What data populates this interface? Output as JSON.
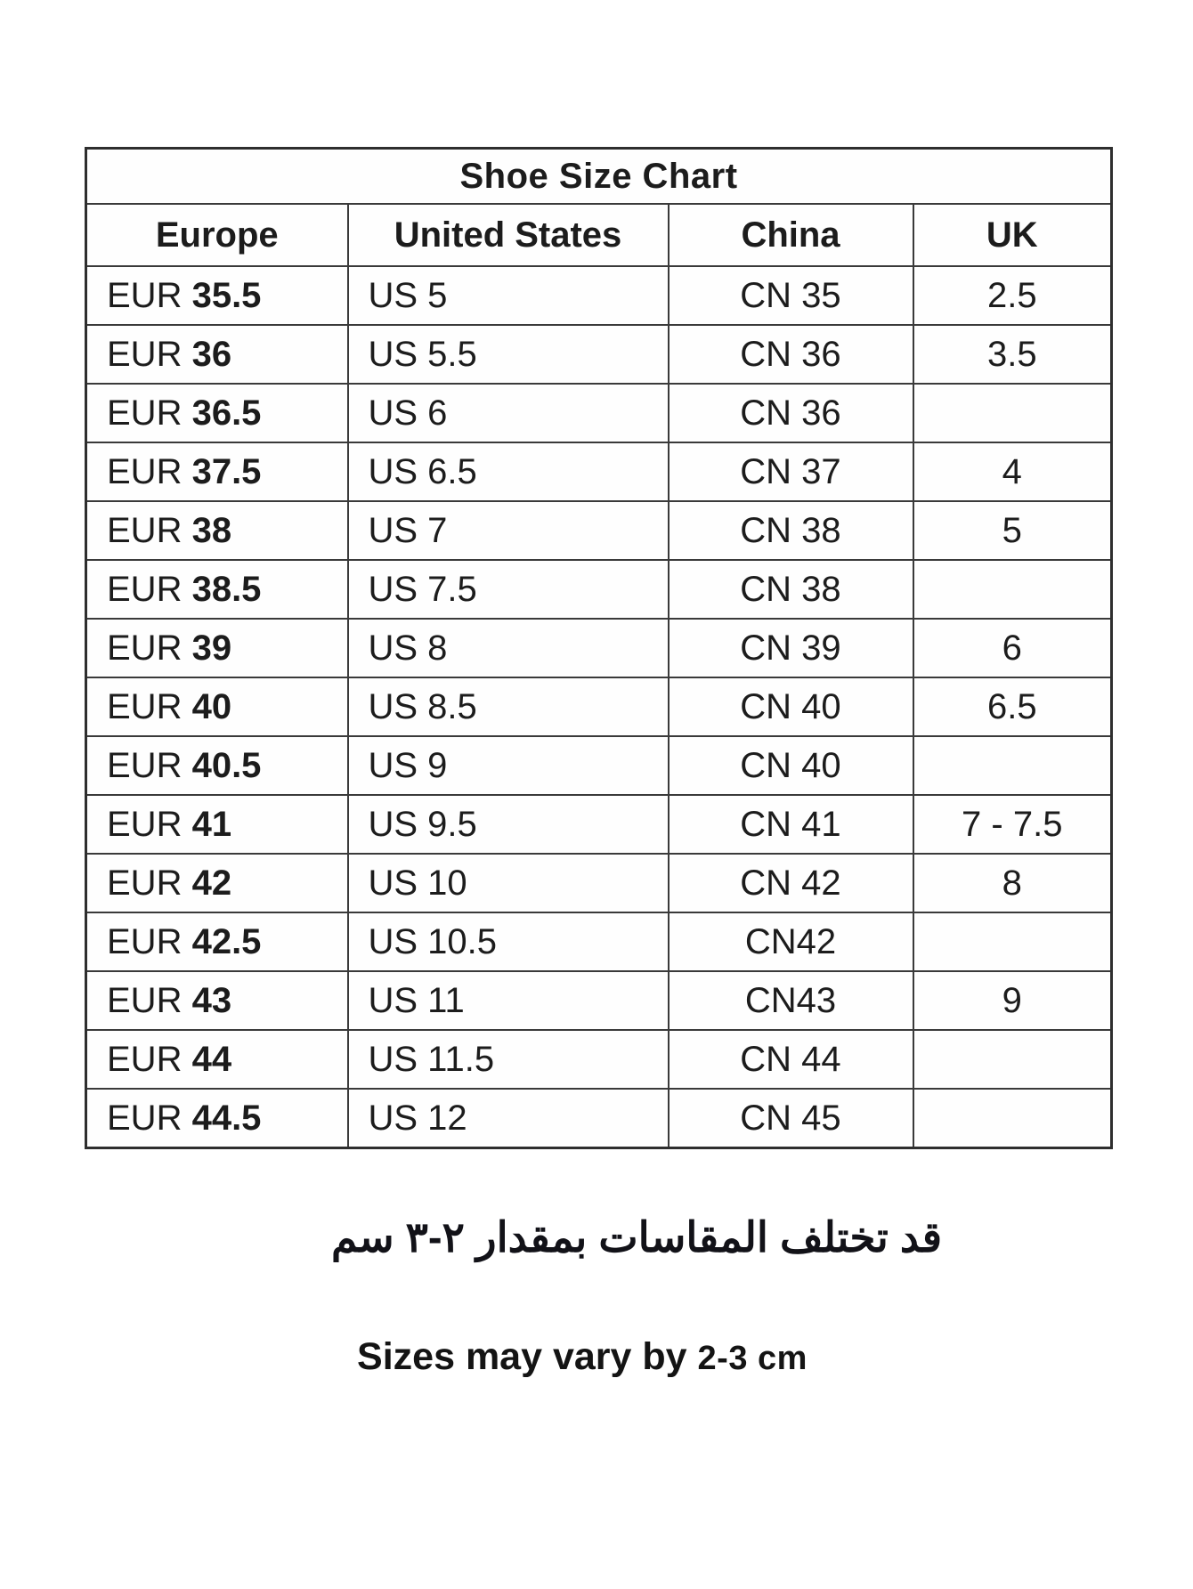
{
  "table": {
    "title": "Shoe Size Chart",
    "headers": [
      "Europe",
      "United States",
      "China",
      "UK"
    ],
    "rows": [
      {
        "europe": "EUR 35.5",
        "us": "US 5",
        "china": "CN 35",
        "uk": "2.5"
      },
      {
        "europe": "EUR 36",
        "us": "US 5.5",
        "china": "CN 36",
        "uk": "3.5"
      },
      {
        "europe": "EUR 36.5",
        "us": "US 6",
        "china": "CN 36",
        "uk": ""
      },
      {
        "europe": "EUR 37.5",
        "us": "US 6.5",
        "china": "CN 37",
        "uk": "4"
      },
      {
        "europe": "EUR 38",
        "us": "US 7",
        "china": "CN 38",
        "uk": "5"
      },
      {
        "europe": "EUR 38.5",
        "us": "US 7.5",
        "china": "CN 38",
        "uk": ""
      },
      {
        "europe": "EUR 39",
        "us": "US 8",
        "china": "CN 39",
        "uk": "6"
      },
      {
        "europe": "EUR 40",
        "us": "US 8.5",
        "china": "CN 40",
        "uk": "6.5"
      },
      {
        "europe": "EUR 40.5",
        "us": "US 9",
        "china": "CN 40",
        "uk": ""
      },
      {
        "europe": "EUR 41",
        "us": "US 9.5",
        "china": "CN 41",
        "uk": "7 - 7.5"
      },
      {
        "europe": "EUR 42",
        "us": "US 10",
        "china": "CN 42",
        "uk": "8"
      },
      {
        "europe": "EUR 42.5",
        "us": "US 10.5",
        "china": "CN42",
        "uk": ""
      },
      {
        "europe": "EUR 43",
        "us": "US 11",
        "china": "CN43",
        "uk": "9"
      },
      {
        "europe": "EUR 44",
        "us": "US 11.5",
        "china": "CN 44",
        "uk": ""
      },
      {
        "europe": "EUR 44.5",
        "us": "US 12",
        "china": "CN 45",
        "uk": ""
      }
    ],
    "colors": {
      "border": "#3a3a3a",
      "text": "#1c1c1c",
      "background": "#ffffff"
    }
  },
  "notes": {
    "arabic": "قد تختلف المقاسات بمقدار ٢-٣ سم",
    "english_main": "Sizes may vary by",
    "english_size": "2-3 cm"
  }
}
